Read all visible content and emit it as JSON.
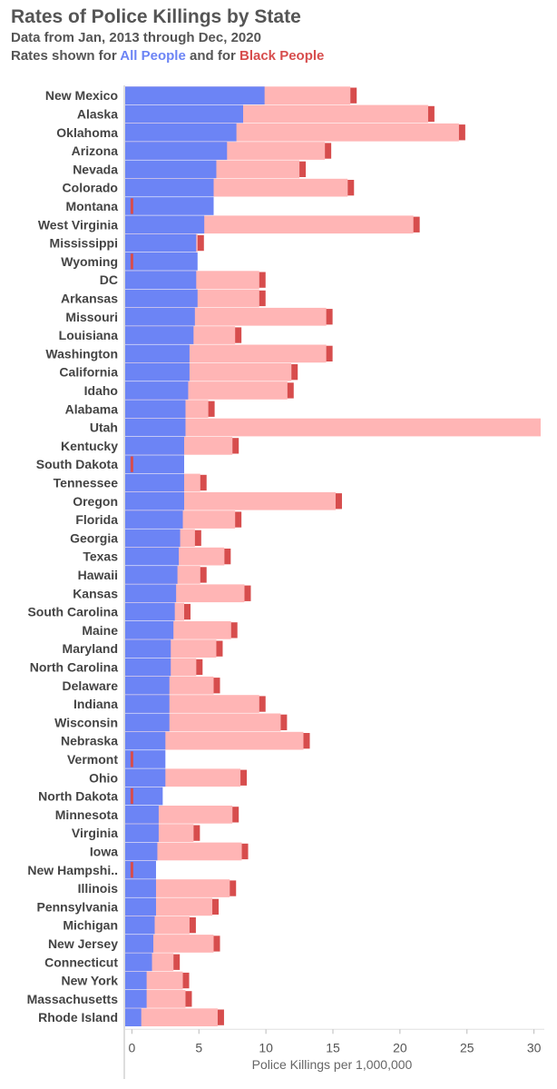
{
  "header": {
    "title": "Rates of Police Killings by State",
    "subtitle_line1": "Data from Jan, 2013 through Dec, 2020",
    "subtitle_line2_prefix": "Rates shown for ",
    "all_people_label": "All People",
    "subtitle_line2_middle": " and for ",
    "black_people_label": "Black People"
  },
  "colors": {
    "all_people": "#6c84f5",
    "black_people_bar": "#ffb5b5",
    "black_people_marker": "#d74d4d",
    "axis": "#bbbbbb",
    "gridline": "#e0e0e0"
  },
  "chart_data": {
    "type": "bar",
    "orientation": "horizontal",
    "xlabel": "Police Killings per 1,000,000",
    "xlim": [
      -0.5,
      30.5
    ],
    "xticks": [
      0,
      5,
      10,
      15,
      20,
      25,
      30
    ],
    "categories": [
      "New Mexico",
      "Alaska",
      "Oklahoma",
      "Arizona",
      "Nevada",
      "Colorado",
      "Montana",
      "West Virginia",
      "Mississippi",
      "Wyoming",
      "DC",
      "Arkansas",
      "Missouri",
      "Louisiana",
      "Washington",
      "California",
      "Idaho",
      "Alabama",
      "Utah",
      "Kentucky",
      "South Dakota",
      "Tennessee",
      "Oregon",
      "Florida",
      "Georgia",
      "Texas",
      "Hawaii",
      "Kansas",
      "South Carolina",
      "Maine",
      "Maryland",
      "North Carolina",
      "Delaware",
      "Indiana",
      "Wisconsin",
      "Nebraska",
      "Vermont",
      "Ohio",
      "North Dakota",
      "Minnesota",
      "Virginia",
      "Iowa",
      "New Hampshi..",
      "Illinois",
      "Pennsylvania",
      "Michigan",
      "New Jersey",
      "Connecticut",
      "New York",
      "Massachusetts",
      "Rhode Island"
    ],
    "series": [
      {
        "name": "All People",
        "values": [
          9.9,
          8.3,
          7.8,
          7.1,
          6.3,
          6.1,
          6.1,
          5.4,
          4.8,
          4.9,
          4.8,
          4.9,
          4.7,
          4.6,
          4.3,
          4.3,
          4.2,
          4.0,
          4.0,
          3.9,
          3.9,
          3.9,
          3.9,
          3.8,
          3.6,
          3.5,
          3.4,
          3.3,
          3.2,
          3.1,
          2.9,
          2.9,
          2.8,
          2.8,
          2.8,
          2.5,
          2.5,
          2.5,
          2.3,
          2.0,
          2.0,
          1.9,
          1.8,
          1.8,
          1.8,
          1.7,
          1.6,
          1.5,
          1.1,
          1.1,
          0.7
        ]
      },
      {
        "name": "Black People",
        "values": [
          16.3,
          22.1,
          24.4,
          14.4,
          12.5,
          16.1,
          0,
          21.0,
          4.9,
          0,
          9.5,
          9.5,
          14.5,
          7.7,
          14.5,
          11.9,
          11.6,
          5.7,
          32.0,
          7.5,
          0,
          5.1,
          15.2,
          7.7,
          4.7,
          6.9,
          5.1,
          8.4,
          3.9,
          7.4,
          6.3,
          4.8,
          6.1,
          9.5,
          11.1,
          12.8,
          0,
          8.1,
          0,
          7.5,
          4.6,
          8.2,
          0,
          7.3,
          6.0,
          4.3,
          6.1,
          3.1,
          3.8,
          4.0,
          6.4
        ]
      }
    ]
  }
}
